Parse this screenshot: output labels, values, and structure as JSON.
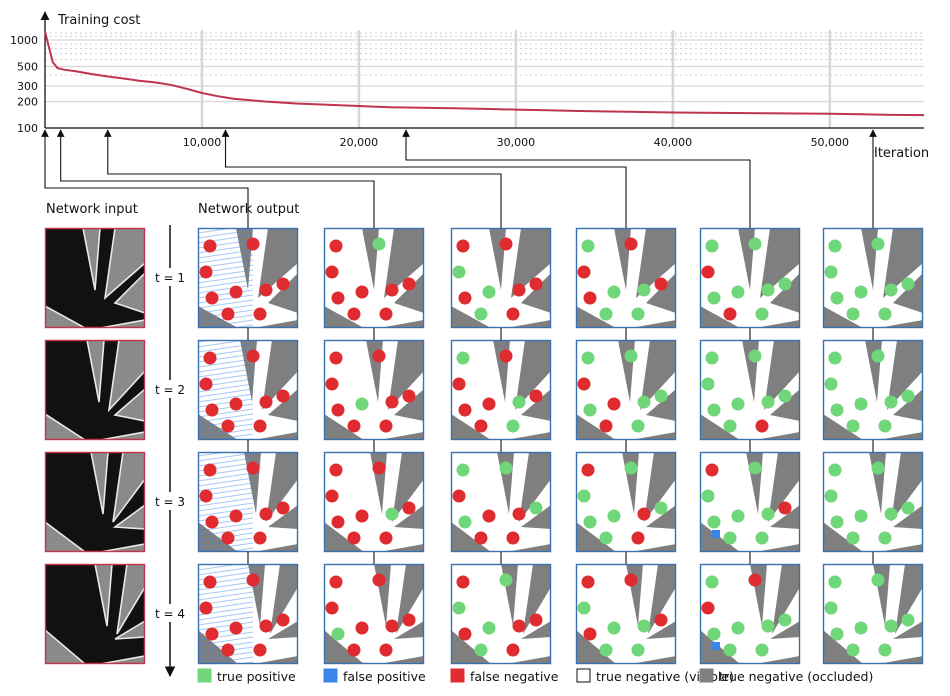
{
  "chart_data": {
    "type": "line",
    "title": "",
    "ylabel": "Training cost",
    "xlabel": "Iteration",
    "y_scale": "log",
    "ylim": [
      100,
      1300
    ],
    "xlim": [
      0,
      56000
    ],
    "y_ticks": [
      100,
      200,
      300,
      500,
      1000
    ],
    "y_tick_labels": [
      "100",
      "200",
      "300",
      "500",
      "1000"
    ],
    "x_ticks": [
      10000,
      20000,
      30000,
      40000,
      50000
    ],
    "x_tick_labels": [
      "10,000",
      "20,000",
      "30,000",
      "40,000",
      "50,000"
    ],
    "grid": true,
    "series_color": "#c0344f",
    "series": [
      {
        "x": [
          0,
          200,
          500,
          800,
          1200,
          2000,
          3000,
          4000,
          5000,
          6000,
          7000,
          8000,
          9000,
          10000,
          11000,
          12000,
          14000,
          16000,
          18000,
          20000,
          22000,
          24000,
          26000,
          28000,
          30000,
          32000,
          34000,
          36000,
          38000,
          40000,
          42000,
          44000,
          46000,
          48000,
          50000,
          52000,
          54000,
          56000
        ],
        "y": [
          1250,
          900,
          560,
          480,
          460,
          440,
          410,
          385,
          365,
          345,
          330,
          310,
          280,
          250,
          230,
          215,
          200,
          190,
          184,
          178,
          172,
          170,
          168,
          165,
          162,
          159,
          156,
          154,
          152,
          150,
          149,
          148,
          147,
          146,
          145,
          143,
          141,
          140
        ]
      }
    ],
    "snapshot_iterations": [
      0,
      1000,
      4000,
      11500,
      23000,
      56000
    ]
  },
  "labels": {
    "network_input": "Network input",
    "network_output": "Network output",
    "time_steps": [
      "t = 1",
      "t = 2",
      "t = 3",
      "t = 4"
    ]
  },
  "legend": [
    {
      "label": "true positive",
      "color": "#6fd67a"
    },
    {
      "label": "false positive",
      "color": "#3a86e8"
    },
    {
      "label": "false negative",
      "color": "#e02b30"
    },
    {
      "label": "true negative (visible)",
      "color": "#ffffff"
    },
    {
      "label": "true negative (occluded)",
      "color": "#7f7f7f"
    }
  ]
}
